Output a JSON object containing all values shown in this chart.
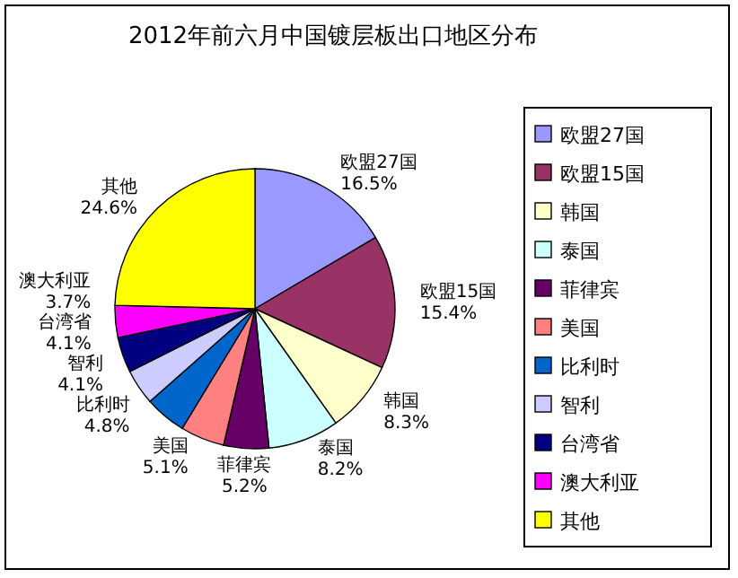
{
  "chart_data": {
    "type": "pie",
    "title": "2012年前六月中国镀层板出口地区分布",
    "categories": [
      "欧盟27国",
      "欧盟15国",
      "韩国",
      "泰国",
      "菲律宾",
      "美国",
      "比利时",
      "智利",
      "台湾省",
      "澳大利亚",
      "其他"
    ],
    "values": [
      16.5,
      15.4,
      8.3,
      8.2,
      5.2,
      5.1,
      4.8,
      4.1,
      4.1,
      3.7,
      24.6
    ],
    "colors": [
      "#9999ff",
      "#993366",
      "#ffffcc",
      "#ccffff",
      "#660066",
      "#ff8080",
      "#0066cc",
      "#ccccff",
      "#000080",
      "#ff00ff",
      "#ffff00"
    ],
    "value_labels": [
      "16.5%",
      "15.4%",
      "8.3%",
      "8.2%",
      "5.2%",
      "5.1%",
      "4.8%",
      "4.1%",
      "4.1%",
      "3.7%",
      "24.6%"
    ],
    "legend": "right"
  }
}
